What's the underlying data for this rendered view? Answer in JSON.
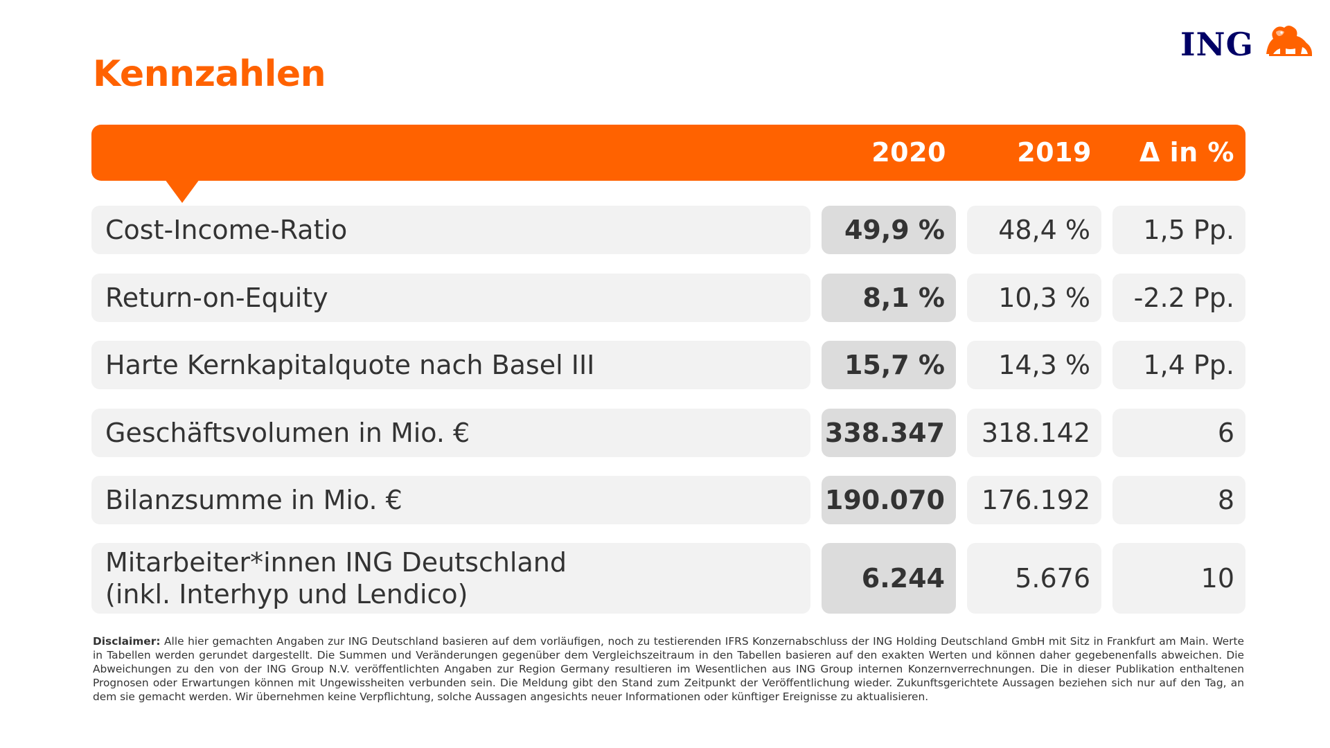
{
  "page": {
    "title": "Kennzahlen"
  },
  "logo": {
    "text": "ING",
    "icon": "lion-icon"
  },
  "colors": {
    "brand_orange": "#ff6200",
    "logo_blue": "#000066",
    "cell_light": "#f2f2f2",
    "cell_highlight": "#dcdcdc",
    "text": "#333333"
  },
  "table": {
    "columns": [
      "2020",
      "2019",
      "Δ in %"
    ],
    "rows": [
      {
        "label": [
          "Cost-Income-Ratio"
        ],
        "v2020": "49,9 %",
        "v2019": "48,4 %",
        "delta": "1,5 Pp."
      },
      {
        "label": [
          "Return-on-Equity"
        ],
        "v2020": "8,1 %",
        "v2019": "10,3 %",
        "delta": "-2.2 Pp."
      },
      {
        "label": [
          "Harte Kernkapitalquote nach Basel III"
        ],
        "v2020": "15,7 %",
        "v2019": "14,3 %",
        "delta": "1,4 Pp."
      },
      {
        "label": [
          "Geschäftsvolumen in Mio. €"
        ],
        "v2020": "338.347",
        "v2019": "318.142",
        "delta": "6"
      },
      {
        "label": [
          "Bilanzsumme in Mio. €"
        ],
        "v2020": "190.070",
        "v2019": "176.192",
        "delta": "8"
      },
      {
        "label": [
          "Mitarbeiter*innen ING Deutschland",
          "(inkl. Interhyp und Lendico)"
        ],
        "v2020": "6.244",
        "v2019": "5.676",
        "delta": "10"
      }
    ]
  },
  "disclaimer": {
    "label": "Disclaimer:",
    "text": "Alle hier gemachten Angaben zur ING Deutschland basieren auf dem vorläufigen, noch zu testierenden IFRS Konzernabschluss der ING Holding Deutschland GmbH mit Sitz in Frankfurt am Main. Werte in Tabellen werden gerundet dargestellt. Die Summen und Veränderungen gegenüber dem Vergleichszeitraum in den Tabellen basieren auf den exakten Werten und können daher gegebenenfalls abweichen. Die Abweichungen zu den von der ING Group N.V. veröffentlichten Angaben zur Region Germany resultieren im Wesentlichen aus ING Group internen Konzernverrechnungen. Die in dieser Publikation enthaltenen Prognosen oder Erwartungen können mit Ungewissheiten verbunden sein. Die Meldung gibt den Stand zum Zeitpunkt der Veröffentlichung wieder. Zukunftsgerichtete Aussagen beziehen sich nur auf den Tag, an dem sie gemacht werden. Wir übernehmen keine Verpflichtung, solche Aussagen angesichts neuer Informationen oder künftiger Ereignisse zu aktualisieren."
  }
}
